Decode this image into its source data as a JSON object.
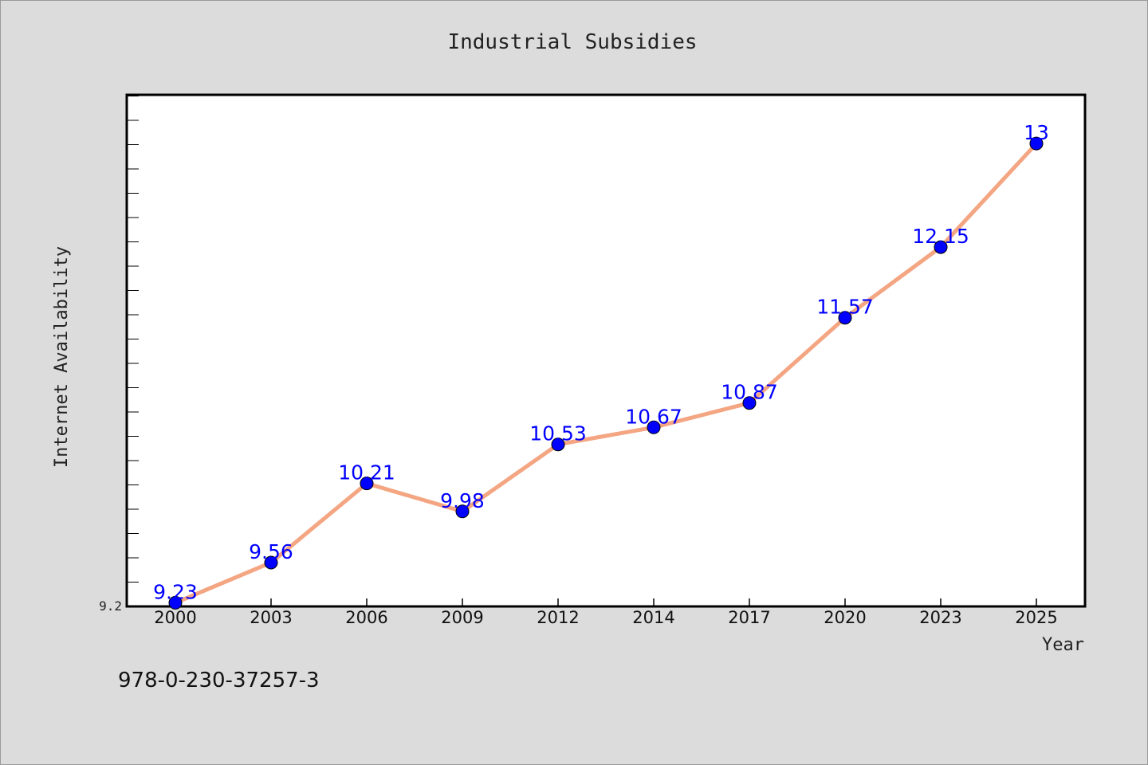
{
  "chart_data": {
    "type": "line",
    "title": "Industrial Subsidies",
    "xlabel": "Year",
    "ylabel": "Internet Availability",
    "categories": [
      "2000",
      "2003",
      "2006",
      "2009",
      "2012",
      "2014",
      "2017",
      "2020",
      "2023",
      "2025"
    ],
    "series": [
      {
        "values": [
          9.23,
          9.56,
          10.21,
          9.98,
          10.53,
          10.67,
          10.87,
          11.57,
          12.15,
          13
        ],
        "labels": [
          "9.23",
          "9.56",
          "10.21",
          "9.98",
          "10.53",
          "10.67",
          "10.87",
          "11.57",
          "12.15",
          "13"
        ]
      }
    ],
    "ylim": [
      9.2,
      13.4
    ],
    "yticks_labeled": [
      "9.2"
    ],
    "grid": false,
    "line_color": "#f4a582",
    "marker_color": "#0000ff",
    "label_color": "#0000ff"
  },
  "footer": "978-0-230-37257-3"
}
